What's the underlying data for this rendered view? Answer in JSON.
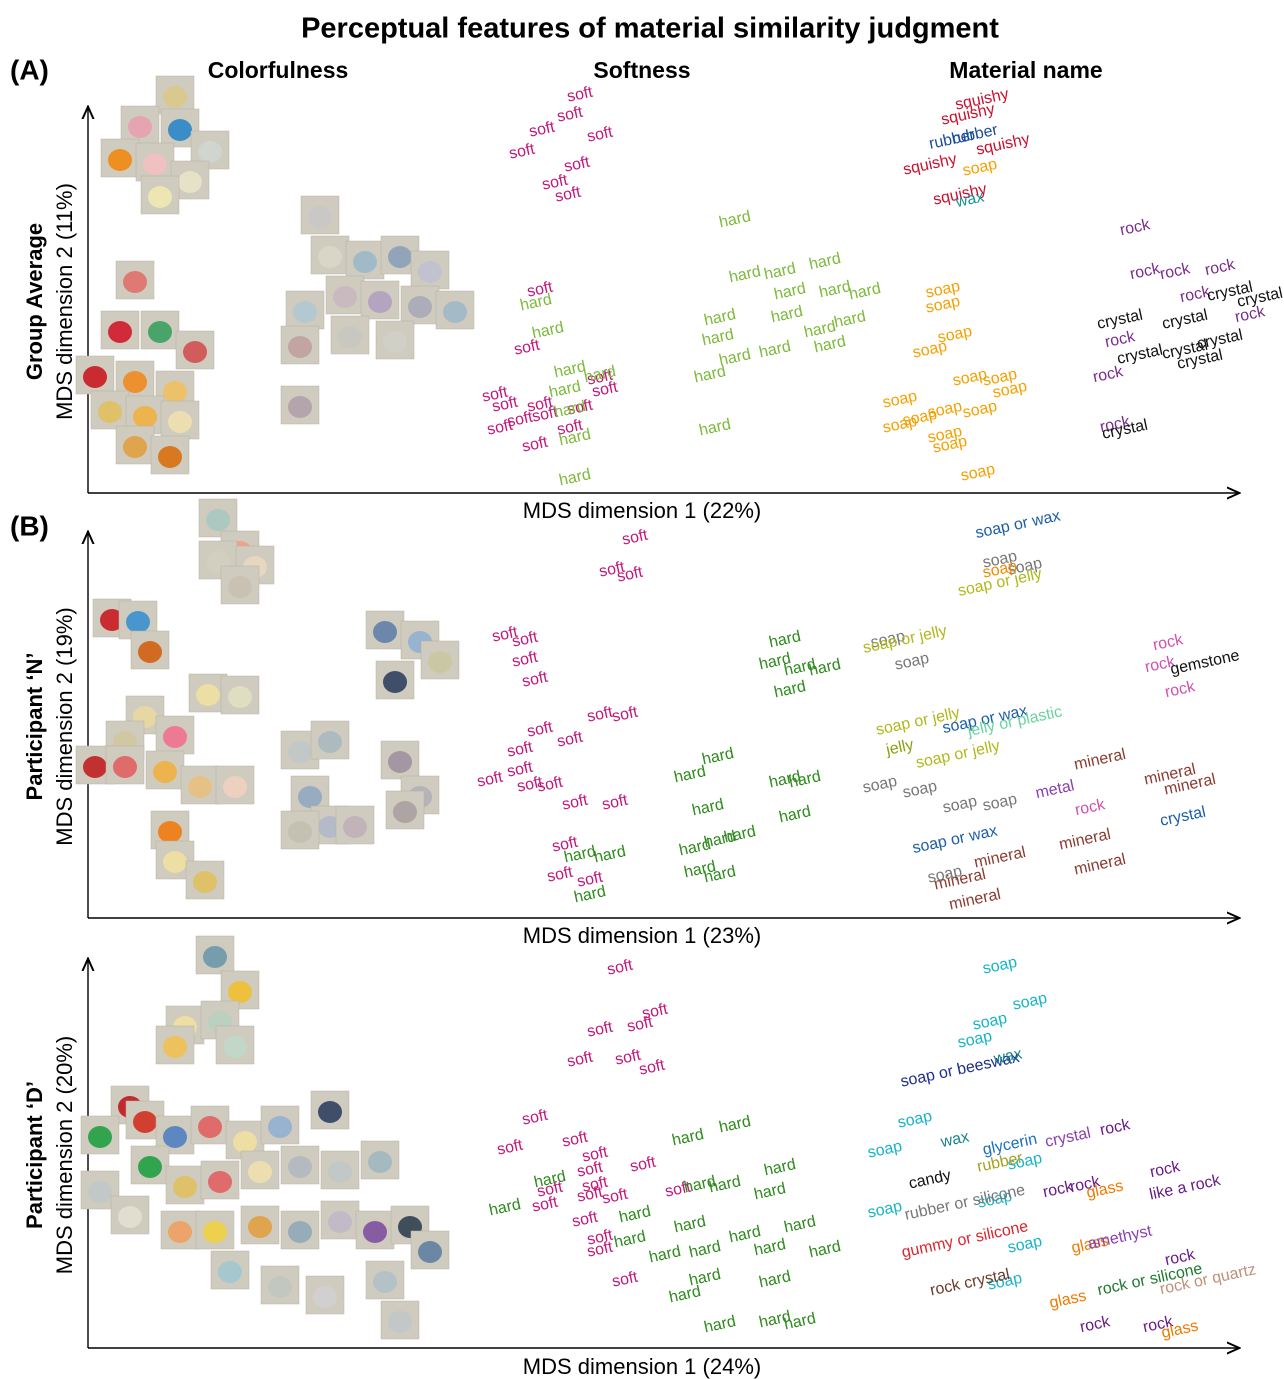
{
  "title": "Perceptual features of material similarity judgment",
  "columns": [
    "Colorfulness",
    "Softness",
    "Material name"
  ],
  "rows": [
    {
      "panel": "(A)",
      "row_label": "Group Average",
      "y_axis": "MDS dimension 2 (11%)",
      "x_axis": "MDS dimension 1 (22%)",
      "softness": [
        {
          "text": "soft",
          "color": "#c2187a"
        },
        {
          "text": "soft",
          "color": "#c2187a"
        },
        {
          "text": "soft",
          "color": "#c2187a"
        },
        {
          "text": "soft",
          "color": "#c2187a"
        },
        {
          "text": "soft",
          "color": "#c2187a"
        },
        {
          "text": "soft",
          "color": "#c2187a"
        },
        {
          "text": "soft",
          "color": "#c2187a"
        },
        {
          "text": "soft",
          "color": "#c2187a"
        },
        {
          "text": "soft",
          "color": "#c2187a"
        },
        {
          "text": "soft",
          "color": "#c2187a"
        },
        {
          "text": "soft",
          "color": "#c2187a"
        },
        {
          "text": "soft",
          "color": "#c2187a"
        },
        {
          "text": "soft",
          "color": "#c2187a"
        },
        {
          "text": "soft",
          "color": "#c2187a"
        },
        {
          "text": "soft",
          "color": "#c2187a"
        },
        {
          "text": "soft",
          "color": "#c2187a"
        },
        {
          "text": "soft",
          "color": "#c2187a"
        },
        {
          "text": "soft",
          "color": "#c2187a"
        },
        {
          "text": "soft",
          "color": "#c2187a"
        },
        {
          "text": "soft",
          "color": "#c2187a"
        },
        {
          "text": "soft",
          "color": "#c2187a"
        },
        {
          "text": "hard",
          "color": "#7cba3c"
        },
        {
          "text": "hard",
          "color": "#7cba3c"
        },
        {
          "text": "hard",
          "color": "#7cba3c"
        },
        {
          "text": "hard",
          "color": "#7cba3c"
        },
        {
          "text": "hard",
          "color": "#7cba3c"
        },
        {
          "text": "hard",
          "color": "#7cba3c"
        },
        {
          "text": "hard",
          "color": "#7cba3c"
        },
        {
          "text": "hard",
          "color": "#7cba3c"
        },
        {
          "text": "hard",
          "color": "#7cba3c"
        },
        {
          "text": "hard",
          "color": "#7cba3c"
        },
        {
          "text": "hard",
          "color": "#7cba3c"
        },
        {
          "text": "hard",
          "color": "#7cba3c"
        },
        {
          "text": "hard",
          "color": "#7cba3c"
        },
        {
          "text": "hard",
          "color": "#7cba3c"
        },
        {
          "text": "hard",
          "color": "#7cba3c"
        },
        {
          "text": "hard",
          "color": "#7cba3c"
        },
        {
          "text": "hard",
          "color": "#7cba3c"
        },
        {
          "text": "hard",
          "color": "#7cba3c"
        },
        {
          "text": "hard",
          "color": "#7cba3c"
        },
        {
          "text": "hard",
          "color": "#7cba3c"
        },
        {
          "text": "hard",
          "color": "#7cba3c"
        },
        {
          "text": "hard",
          "color": "#7cba3c"
        },
        {
          "text": "hard",
          "color": "#7cba3c"
        },
        {
          "text": "hard",
          "color": "#7cba3c"
        },
        {
          "text": "hard",
          "color": "#7cba3c"
        }
      ],
      "material": [
        {
          "text": "squishy",
          "color": "#c8102e"
        },
        {
          "text": "squishy",
          "color": "#c8102e"
        },
        {
          "text": "squishy",
          "color": "#c8102e"
        },
        {
          "text": "squishy",
          "color": "#c8102e"
        },
        {
          "text": "squishy",
          "color": "#c8102e"
        },
        {
          "text": "rubber",
          "color": "#1a4c9c"
        },
        {
          "text": "rubber",
          "color": "#1a4c9c"
        },
        {
          "text": "soap",
          "color": "#f5a000"
        },
        {
          "text": "soap",
          "color": "#f5a000"
        },
        {
          "text": "soap",
          "color": "#f5a000"
        },
        {
          "text": "soap",
          "color": "#f5a000"
        },
        {
          "text": "soap",
          "color": "#f5a000"
        },
        {
          "text": "soap",
          "color": "#f5a000"
        },
        {
          "text": "soap",
          "color": "#f5a000"
        },
        {
          "text": "soap",
          "color": "#f5a000"
        },
        {
          "text": "soap",
          "color": "#f5a000"
        },
        {
          "text": "soap",
          "color": "#f5a000"
        },
        {
          "text": "soap",
          "color": "#f5a000"
        },
        {
          "text": "soap",
          "color": "#f5a000"
        },
        {
          "text": "soap",
          "color": "#f5a000"
        },
        {
          "text": "soap",
          "color": "#f5a000"
        },
        {
          "text": "soap",
          "color": "#f5a000"
        },
        {
          "text": "soap",
          "color": "#f5a000"
        },
        {
          "text": "wax",
          "color": "#16948e"
        },
        {
          "text": "rock",
          "color": "#7b2d8e"
        },
        {
          "text": "rock",
          "color": "#7b2d8e"
        },
        {
          "text": "rock",
          "color": "#7b2d8e"
        },
        {
          "text": "rock",
          "color": "#7b2d8e"
        },
        {
          "text": "rock",
          "color": "#7b2d8e"
        },
        {
          "text": "rock",
          "color": "#7b2d8e"
        },
        {
          "text": "rock",
          "color": "#7b2d8e"
        },
        {
          "text": "rock",
          "color": "#7b2d8e"
        },
        {
          "text": "rock",
          "color": "#7b2d8e"
        },
        {
          "text": "crystal",
          "color": "#111111"
        },
        {
          "text": "crystal",
          "color": "#111111"
        },
        {
          "text": "crystal",
          "color": "#111111"
        },
        {
          "text": "crystal",
          "color": "#111111"
        },
        {
          "text": "crystal",
          "color": "#111111"
        },
        {
          "text": "crystal",
          "color": "#111111"
        },
        {
          "text": "crystal",
          "color": "#111111"
        },
        {
          "text": "crystal",
          "color": "#111111"
        },
        {
          "text": "crystal",
          "color": "#111111"
        }
      ]
    },
    {
      "panel": "(B)",
      "row_label": "Participant ‘N’",
      "y_axis": "MDS dimension 2 (19%)",
      "x_axis": "MDS dimension 1 (23%)",
      "softness": [
        {
          "text": "soft",
          "color": "#c2187a"
        },
        {
          "text": "soft",
          "color": "#c2187a"
        },
        {
          "text": "soft",
          "color": "#c2187a"
        },
        {
          "text": "soft",
          "color": "#c2187a"
        },
        {
          "text": "soft",
          "color": "#c2187a"
        },
        {
          "text": "soft",
          "color": "#c2187a"
        },
        {
          "text": "soft",
          "color": "#c2187a"
        },
        {
          "text": "soft",
          "color": "#c2187a"
        },
        {
          "text": "soft",
          "color": "#c2187a"
        },
        {
          "text": "soft",
          "color": "#c2187a"
        },
        {
          "text": "soft",
          "color": "#c2187a"
        },
        {
          "text": "soft",
          "color": "#c2187a"
        },
        {
          "text": "soft",
          "color": "#c2187a"
        },
        {
          "text": "soft",
          "color": "#c2187a"
        },
        {
          "text": "soft",
          "color": "#c2187a"
        },
        {
          "text": "soft",
          "color": "#c2187a"
        },
        {
          "text": "soft",
          "color": "#c2187a"
        },
        {
          "text": "soft",
          "color": "#c2187a"
        },
        {
          "text": "soft",
          "color": "#c2187a"
        },
        {
          "text": "soft",
          "color": "#c2187a"
        },
        {
          "text": "soft",
          "color": "#c2187a"
        },
        {
          "text": "hard",
          "color": "#2e8b1e"
        },
        {
          "text": "hard",
          "color": "#2e8b1e"
        },
        {
          "text": "hard",
          "color": "#2e8b1e"
        },
        {
          "text": "hard",
          "color": "#2e8b1e"
        },
        {
          "text": "hard",
          "color": "#2e8b1e"
        },
        {
          "text": "hard",
          "color": "#2e8b1e"
        },
        {
          "text": "hard",
          "color": "#2e8b1e"
        },
        {
          "text": "hard",
          "color": "#2e8b1e"
        },
        {
          "text": "hard",
          "color": "#2e8b1e"
        },
        {
          "text": "hard",
          "color": "#2e8b1e"
        },
        {
          "text": "hard",
          "color": "#2e8b1e"
        },
        {
          "text": "hard",
          "color": "#2e8b1e"
        },
        {
          "text": "hard",
          "color": "#2e8b1e"
        },
        {
          "text": "hard",
          "color": "#2e8b1e"
        },
        {
          "text": "hard",
          "color": "#2e8b1e"
        },
        {
          "text": "hard",
          "color": "#2e8b1e"
        },
        {
          "text": "hard",
          "color": "#2e8b1e"
        },
        {
          "text": "hard",
          "color": "#2e8b1e"
        },
        {
          "text": "hard",
          "color": "#2e8b1e"
        }
      ],
      "material": [
        {
          "text": "soap or wax",
          "color": "#1a5ea8"
        },
        {
          "text": "soap or wax",
          "color": "#1a5ea8"
        },
        {
          "text": "soap or wax",
          "color": "#1a5ea8"
        },
        {
          "text": "soap",
          "color": "#777777"
        },
        {
          "text": "soap",
          "color": "#777777"
        },
        {
          "text": "soap",
          "color": "#777777"
        },
        {
          "text": "soap",
          "color": "#777777"
        },
        {
          "text": "soap",
          "color": "#777777"
        },
        {
          "text": "soap",
          "color": "#777777"
        },
        {
          "text": "soap",
          "color": "#777777"
        },
        {
          "text": "soap",
          "color": "#777777"
        },
        {
          "text": "soap",
          "color": "#777777"
        },
        {
          "text": "soap",
          "color": "#f08a00"
        },
        {
          "text": "soap or jelly",
          "color": "#b0b81a"
        },
        {
          "text": "soap or jelly",
          "color": "#b0b81a"
        },
        {
          "text": "soap or jelly",
          "color": "#b0b81a"
        },
        {
          "text": "soap or jelly",
          "color": "#b0b81a"
        },
        {
          "text": "jelly",
          "color": "#8aa010"
        },
        {
          "text": "jelly or plastic",
          "color": "#6bd3a0"
        },
        {
          "text": "metal",
          "color": "#8a3fb0"
        },
        {
          "text": "mineral",
          "color": "#8b3a2f"
        },
        {
          "text": "mineral",
          "color": "#8b3a2f"
        },
        {
          "text": "mineral",
          "color": "#8b3a2f"
        },
        {
          "text": "mineral",
          "color": "#8b3a2f"
        },
        {
          "text": "mineral",
          "color": "#8b3a2f"
        },
        {
          "text": "mineral",
          "color": "#8b3a2f"
        },
        {
          "text": "mineral",
          "color": "#8b3a2f"
        },
        {
          "text": "mineral",
          "color": "#8b3a2f"
        },
        {
          "text": "rock",
          "color": "#d34fb0"
        },
        {
          "text": "rock",
          "color": "#d34fb0"
        },
        {
          "text": "rock",
          "color": "#d34fb0"
        },
        {
          "text": "rock",
          "color": "#d34fb0"
        },
        {
          "text": "gemstone",
          "color": "#111111"
        },
        {
          "text": "crystal",
          "color": "#1a5ea8"
        }
      ]
    },
    {
      "row_label": "Participant ‘D’",
      "y_axis": "MDS dimension  2 (20%)",
      "x_axis": "MDS dimension 1 (24%)",
      "softness": [
        {
          "text": "soft",
          "color": "#c2187a"
        },
        {
          "text": "soft",
          "color": "#c2187a"
        },
        {
          "text": "soft",
          "color": "#c2187a"
        },
        {
          "text": "soft",
          "color": "#c2187a"
        },
        {
          "text": "soft",
          "color": "#c2187a"
        },
        {
          "text": "soft",
          "color": "#c2187a"
        },
        {
          "text": "soft",
          "color": "#c2187a"
        },
        {
          "text": "soft",
          "color": "#c2187a"
        },
        {
          "text": "soft",
          "color": "#c2187a"
        },
        {
          "text": "soft",
          "color": "#c2187a"
        },
        {
          "text": "soft",
          "color": "#c2187a"
        },
        {
          "text": "soft",
          "color": "#c2187a"
        },
        {
          "text": "soft",
          "color": "#c2187a"
        },
        {
          "text": "soft",
          "color": "#c2187a"
        },
        {
          "text": "soft",
          "color": "#c2187a"
        },
        {
          "text": "soft",
          "color": "#c2187a"
        },
        {
          "text": "soft",
          "color": "#c2187a"
        },
        {
          "text": "soft",
          "color": "#c2187a"
        },
        {
          "text": "soft",
          "color": "#c2187a"
        },
        {
          "text": "soft",
          "color": "#c2187a"
        },
        {
          "text": "soft",
          "color": "#c2187a"
        },
        {
          "text": "soft",
          "color": "#c2187a"
        },
        {
          "text": "soft",
          "color": "#c2187a"
        },
        {
          "text": "hard",
          "color": "#2e8b1e"
        },
        {
          "text": "hard",
          "color": "#2e8b1e"
        },
        {
          "text": "hard",
          "color": "#2e8b1e"
        },
        {
          "text": "hard",
          "color": "#2e8b1e"
        },
        {
          "text": "hard",
          "color": "#2e8b1e"
        },
        {
          "text": "hard",
          "color": "#2e8b1e"
        },
        {
          "text": "hard",
          "color": "#2e8b1e"
        },
        {
          "text": "hard",
          "color": "#2e8b1e"
        },
        {
          "text": "hard",
          "color": "#2e8b1e"
        },
        {
          "text": "hard",
          "color": "#2e8b1e"
        },
        {
          "text": "hard",
          "color": "#2e8b1e"
        },
        {
          "text": "hard",
          "color": "#2e8b1e"
        },
        {
          "text": "hard",
          "color": "#2e8b1e"
        },
        {
          "text": "hard",
          "color": "#2e8b1e"
        },
        {
          "text": "hard",
          "color": "#2e8b1e"
        },
        {
          "text": "hard",
          "color": "#2e8b1e"
        },
        {
          "text": "hard",
          "color": "#2e8b1e"
        },
        {
          "text": "hard",
          "color": "#2e8b1e"
        },
        {
          "text": "hard",
          "color": "#2e8b1e"
        },
        {
          "text": "hard",
          "color": "#2e8b1e"
        },
        {
          "text": "hard",
          "color": "#2e8b1e"
        },
        {
          "text": "hard",
          "color": "#2e8b1e"
        },
        {
          "text": "hard",
          "color": "#2e8b1e"
        }
      ],
      "material": [
        {
          "text": "soap",
          "color": "#17b3c8"
        },
        {
          "text": "soap",
          "color": "#17b3c8"
        },
        {
          "text": "soap",
          "color": "#17b3c8"
        },
        {
          "text": "soap",
          "color": "#17b3c8"
        },
        {
          "text": "soap",
          "color": "#17b3c8"
        },
        {
          "text": "soap",
          "color": "#17b3c8"
        },
        {
          "text": "soap",
          "color": "#17b3c8"
        },
        {
          "text": "soap",
          "color": "#17b3c8"
        },
        {
          "text": "soap",
          "color": "#17b3c8"
        },
        {
          "text": "soap",
          "color": "#17b3c8"
        },
        {
          "text": "soap",
          "color": "#17b3c8"
        },
        {
          "text": "soap or beeswax",
          "color": "#1c2e8f"
        },
        {
          "text": "wax",
          "color": "#16848e"
        },
        {
          "text": "wax",
          "color": "#16848e"
        },
        {
          "text": "crystal",
          "color": "#8a3fb0"
        },
        {
          "text": "rock",
          "color": "#6a1b8a"
        },
        {
          "text": "rock",
          "color": "#6a1b8a"
        },
        {
          "text": "rock",
          "color": "#6a1b8a"
        },
        {
          "text": "rock",
          "color": "#6a1b8a"
        },
        {
          "text": "rock",
          "color": "#6a1b8a"
        },
        {
          "text": "rock",
          "color": "#6a1b8a"
        },
        {
          "text": "rock",
          "color": "#6a1b8a"
        },
        {
          "text": "candy",
          "color": "#111111"
        },
        {
          "text": "glass",
          "color": "#f07a00"
        },
        {
          "text": "glass",
          "color": "#f07a00"
        },
        {
          "text": "glass",
          "color": "#f07a00"
        },
        {
          "text": "glass",
          "color": "#f07a00"
        },
        {
          "text": "amethyst",
          "color": "#8a3fb0"
        },
        {
          "text": "rubber or silicone",
          "color": "#777777"
        },
        {
          "text": "gummy or silicone",
          "color": "#d8262e"
        },
        {
          "text": "rock crystal",
          "color": "#6b3a2a"
        },
        {
          "text": "like a rock",
          "color": "#6a1b8a"
        },
        {
          "text": "rock or quartz",
          "color": "#c0907a"
        },
        {
          "text": "rock or silicone",
          "color": "#1e7a2e"
        },
        {
          "text": "rubber",
          "color": "#a8a020"
        },
        {
          "text": "glycerin",
          "color": "#1a6ec0"
        }
      ]
    }
  ]
}
